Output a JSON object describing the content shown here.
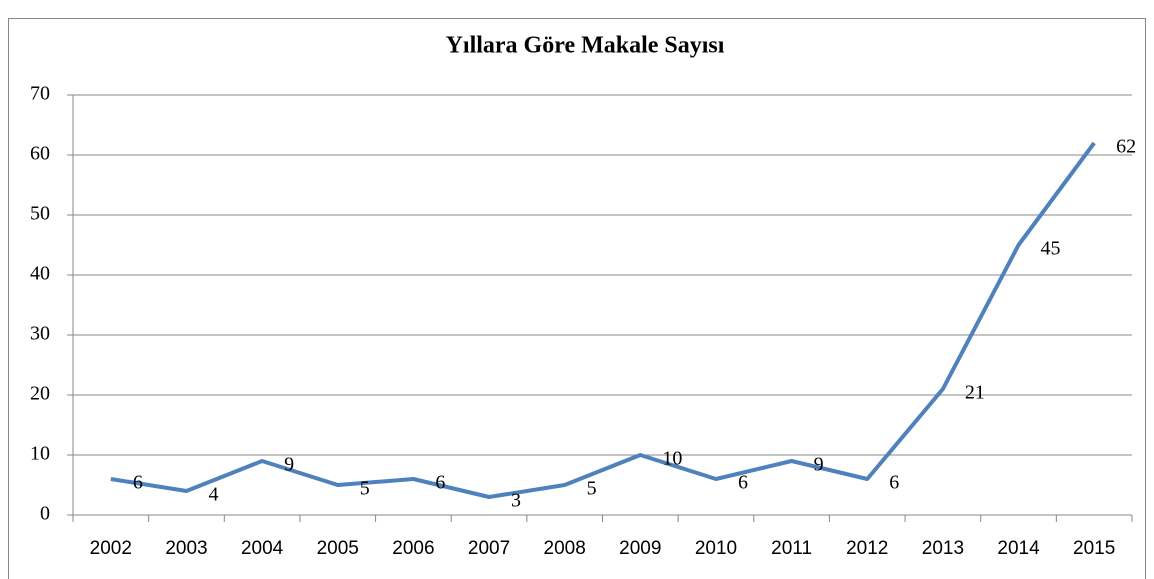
{
  "chart_data": {
    "type": "line",
    "title": "Yıllara Göre Makale Sayısı",
    "categories": [
      "2002",
      "2003",
      "2004",
      "2005",
      "2006",
      "2007",
      "2008",
      "2009",
      "2010",
      "2011",
      "2012",
      "2013",
      "2014",
      "2015"
    ],
    "values": [
      6,
      4,
      9,
      5,
      6,
      3,
      5,
      10,
      6,
      9,
      6,
      21,
      45,
      62
    ],
    "color": "#4f81bd",
    "ylim": [
      0,
      70
    ],
    "yticks": [
      0,
      10,
      20,
      30,
      40,
      50,
      60,
      70
    ],
    "grid": true,
    "data_labels": true
  }
}
